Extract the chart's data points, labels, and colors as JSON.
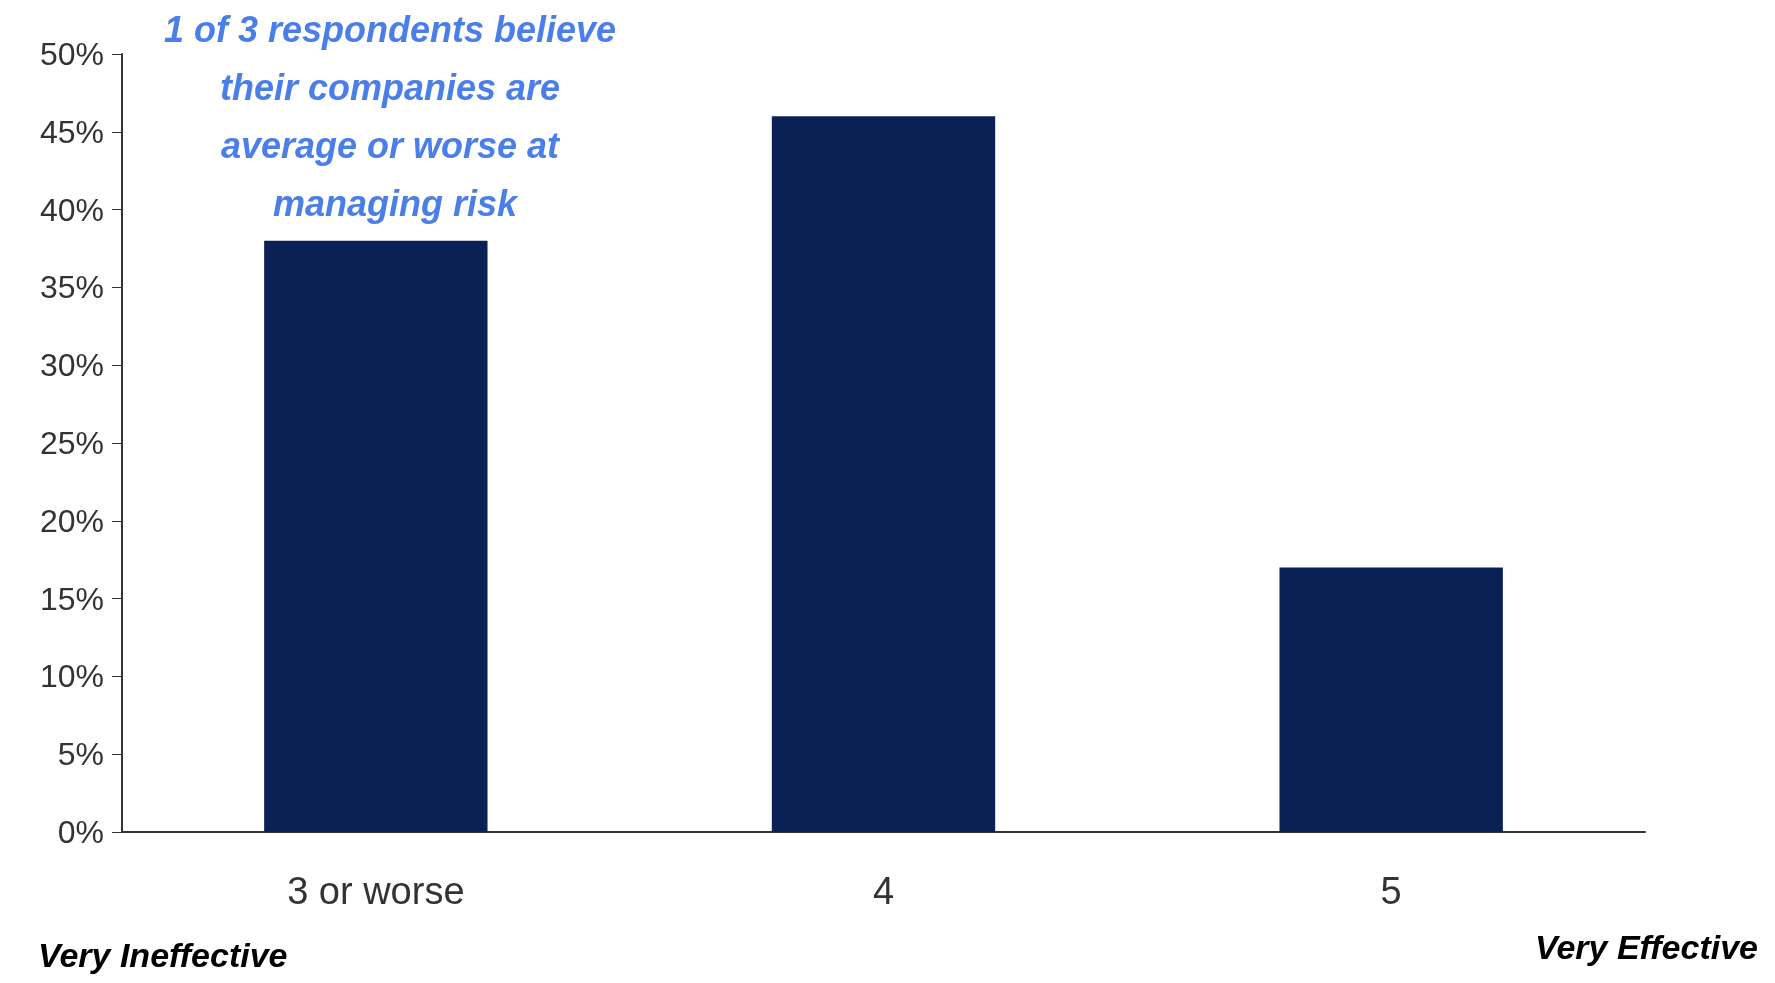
{
  "chart_data": {
    "type": "bar",
    "categories": [
      "3 or worse",
      "4",
      "5"
    ],
    "values": [
      38,
      46,
      17
    ],
    "color": "#0b2155",
    "ylim": [
      0,
      50
    ],
    "yticks": [
      {
        "value": 0,
        "label": "0%"
      },
      {
        "value": 5,
        "label": "5%"
      },
      {
        "value": 10,
        "label": "10%"
      },
      {
        "value": 15,
        "label": "15%"
      },
      {
        "value": 20,
        "label": "20%"
      },
      {
        "value": 25,
        "label": "25%"
      },
      {
        "value": 30,
        "label": "30%"
      },
      {
        "value": 35,
        "label": "35%"
      },
      {
        "value": 40,
        "label": "40%"
      },
      {
        "value": 45,
        "label": "45%"
      },
      {
        "value": 50,
        "label": "50%"
      }
    ],
    "grid": false,
    "annotations": [
      "1 of 3 respondents believe their companies are average or worse at managing risk",
      "Very Ineffective",
      "Very Effective"
    ]
  }
}
